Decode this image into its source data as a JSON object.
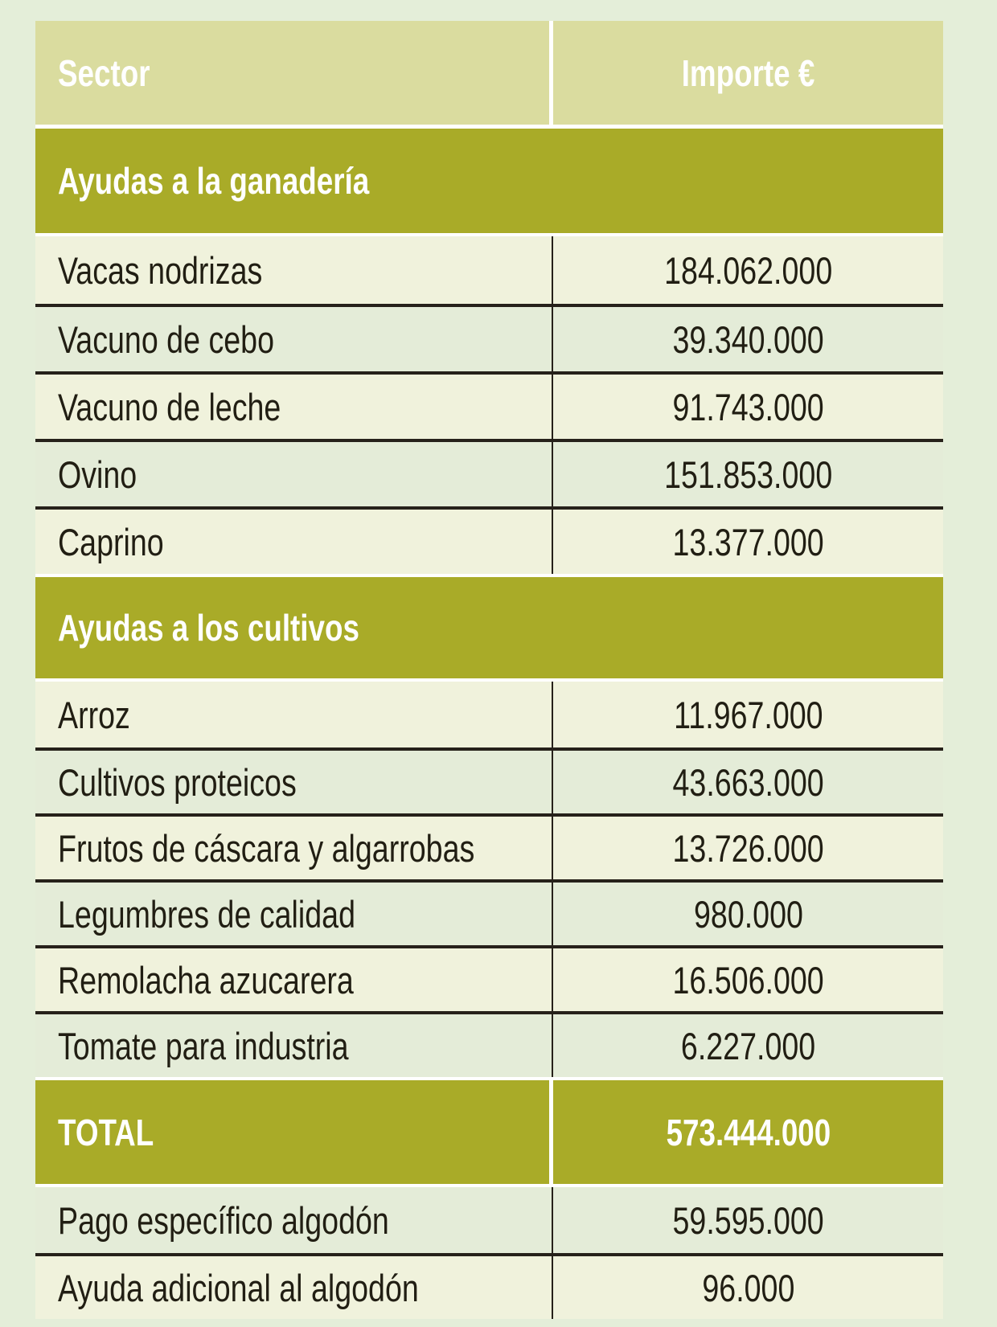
{
  "colors": {
    "page_background": "#e4eed9",
    "header_background": "#dadc9f",
    "section_background": "#a9ab28",
    "row_cream": "#f0f2dc",
    "row_pale": "#e4ecd8",
    "divider_dark": "#26211a",
    "text_dark": "#211e13",
    "text_white": "#ffffff"
  },
  "table": {
    "columns": [
      "Sector",
      "Importe €"
    ],
    "sections": [
      {
        "title": "Ayudas a la ganadería",
        "rows": [
          [
            "Vacas nodrizas",
            "184.062.000"
          ],
          [
            "Vacuno de cebo",
            "39.340.000"
          ],
          [
            "Vacuno de leche",
            "91.743.000"
          ],
          [
            "Ovino",
            "151.853.000"
          ],
          [
            "Caprino",
            "13.377.000"
          ]
        ]
      },
      {
        "title": "Ayudas a los cultivos",
        "rows": [
          [
            "Arroz",
            "11.967.000"
          ],
          [
            "Cultivos proteicos",
            "43.663.000"
          ],
          [
            "Frutos de cáscara y algarrobas",
            "13.726.000"
          ],
          [
            "Legumbres de calidad",
            "980.000"
          ],
          [
            "Remolacha azucarera",
            "16.506.000"
          ],
          [
            "Tomate para industria",
            "6.227.000"
          ]
        ]
      }
    ],
    "total": {
      "label": "TOTAL",
      "value": "573.444.000"
    },
    "footer_rows": [
      [
        "Pago específico algodón",
        "59.595.000"
      ],
      [
        "Ayuda adicional al algodón",
        "96.000"
      ]
    ]
  }
}
